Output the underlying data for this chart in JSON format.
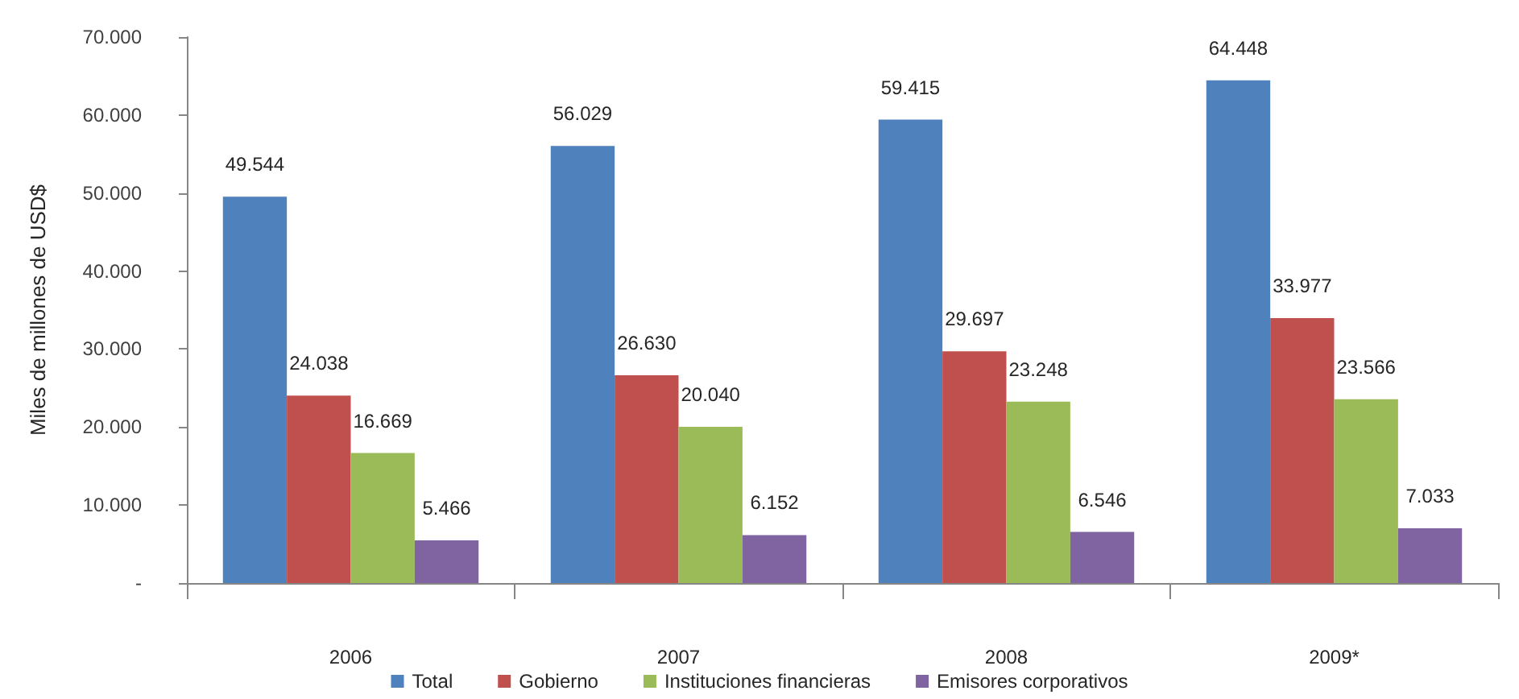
{
  "chart_data": {
    "type": "bar",
    "ylabel": "Miles de millones de USD$",
    "categories": [
      "2006",
      "2007",
      "2008",
      "2009*"
    ],
    "series": [
      {
        "name": "Total",
        "color": "#4f81bd",
        "values": [
          49544,
          56029,
          59415,
          64448
        ],
        "value_labels": [
          "49.544",
          "56.029",
          "59.415",
          "64.448"
        ]
      },
      {
        "name": "Gobierno",
        "color": "#c0504d",
        "values": [
          24038,
          26630,
          29697,
          33977
        ],
        "value_labels": [
          "24.038",
          "26.630",
          "29.697",
          "33.977"
        ]
      },
      {
        "name": "Instituciones financieras",
        "color": "#9bbb59",
        "values": [
          16669,
          20040,
          23248,
          23566
        ],
        "value_labels": [
          "16.669",
          "20.040",
          "23.248",
          "23.566"
        ]
      },
      {
        "name": "Emisores corporativos",
        "color": "#8064a2",
        "values": [
          5466,
          6152,
          6546,
          7033
        ],
        "value_labels": [
          "5.466",
          "6.152",
          "6.546",
          "7.033"
        ]
      }
    ],
    "ylim": [
      0,
      70000
    ],
    "yticks": [
      {
        "value": 0,
        "label": "-"
      },
      {
        "value": 10000,
        "label": "10.000"
      },
      {
        "value": 20000,
        "label": "20.000"
      },
      {
        "value": 30000,
        "label": "30.000"
      },
      {
        "value": 40000,
        "label": "40.000"
      },
      {
        "value": 50000,
        "label": "50.000"
      },
      {
        "value": 60000,
        "label": "60.000"
      },
      {
        "value": 70000,
        "label": "70.000"
      }
    ],
    "grid": false,
    "legend": "bottom"
  }
}
